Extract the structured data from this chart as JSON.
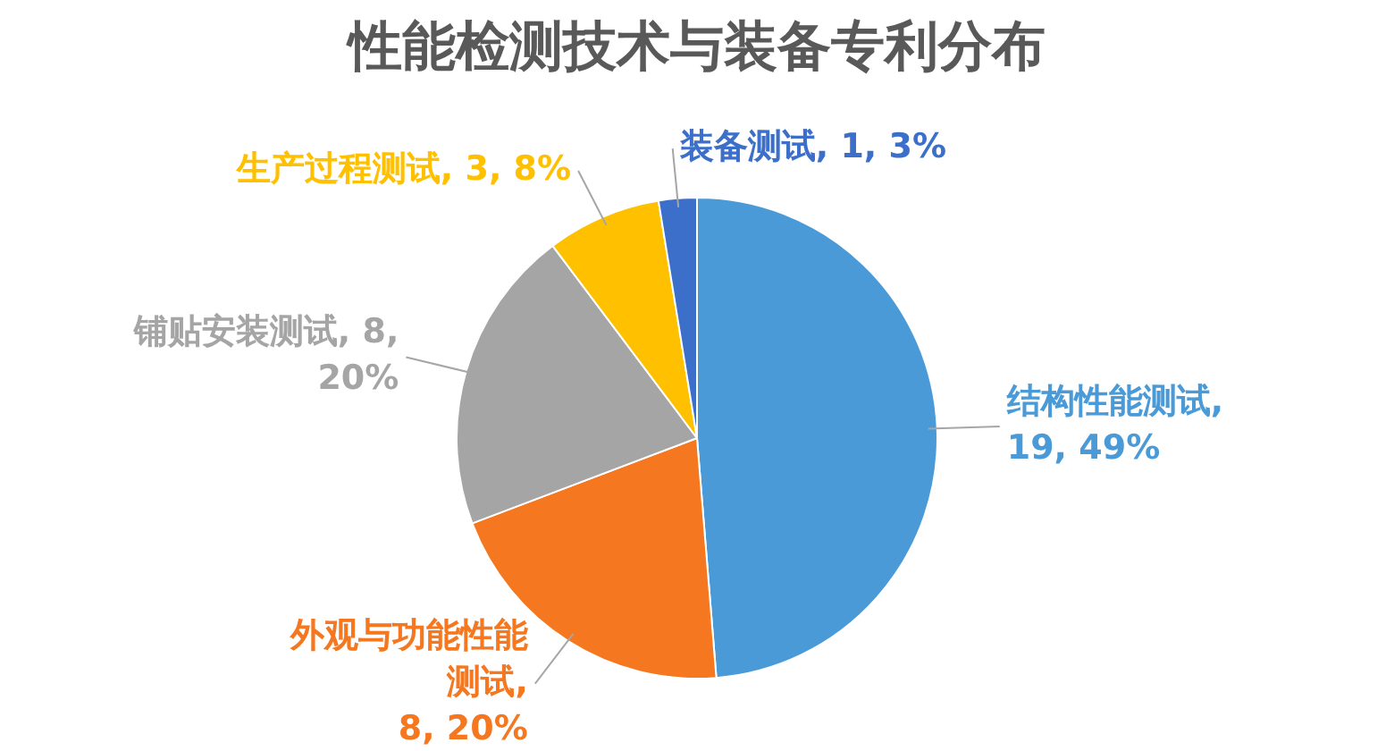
{
  "chart_data": {
    "type": "pie",
    "title": "性能检测技术与装备专利分布",
    "categories": [
      "结构性能测试",
      "外观与功能性能测试",
      "铺贴安装测试",
      "生产过程测试",
      "装备测试"
    ],
    "values": [
      19,
      8,
      8,
      3,
      1
    ],
    "colors": [
      "#4a9ad8",
      "#f5771f",
      "#a5a5a5",
      "#ffc000",
      "#3b6fc9"
    ],
    "value_labels": [
      ", 19, 49%",
      ", 8, 20%",
      ", 8, 20%",
      ", 3, 8%",
      ", 1, 3%"
    ],
    "legend": false
  }
}
